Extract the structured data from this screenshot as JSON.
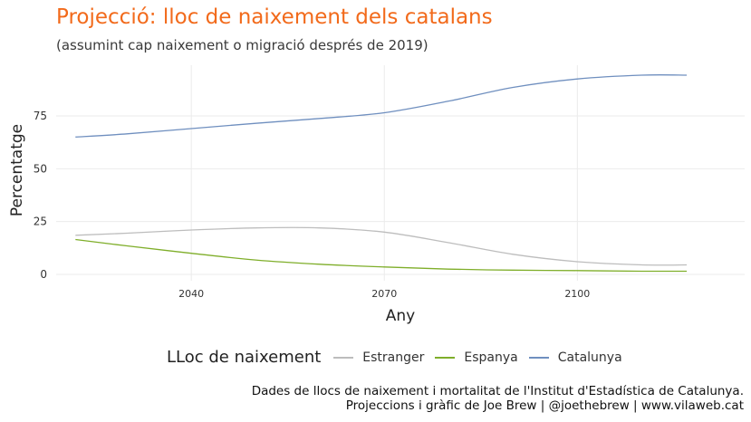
{
  "chart_data": {
    "type": "line",
    "title": "Projecció: lloc de naixement dels catalans",
    "subtitle": "(assumint cap naixement o migració després de 2019)",
    "xlabel": "Any",
    "ylabel": "Percentatge",
    "xlim": [
      2019,
      2126
    ],
    "ylim": [
      -3,
      99
    ],
    "x_ticks": [
      2040,
      2070,
      2100
    ],
    "y_ticks": [
      0,
      25,
      50,
      75
    ],
    "grid": true,
    "legend_title": "LLoc de naixement",
    "legend_position": "bottom",
    "x": [
      2022,
      2030,
      2040,
      2050,
      2060,
      2070,
      2080,
      2090,
      2100,
      2110,
      2117
    ],
    "series": [
      {
        "name": "Estranger",
        "color": "#bdbdbd",
        "values": [
          18.5,
          19.5,
          21.0,
          22.0,
          22.0,
          20.0,
          15.0,
          9.5,
          6.0,
          4.5,
          4.5
        ]
      },
      {
        "name": "Espanya",
        "color": "#7fae2a",
        "values": [
          16.5,
          13.5,
          10.0,
          6.8,
          4.8,
          3.5,
          2.5,
          2.0,
          1.8,
          1.5,
          1.5
        ]
      },
      {
        "name": "Catalunya",
        "color": "#6f8fbf",
        "values": [
          65.0,
          66.5,
          69.0,
          71.5,
          73.8,
          76.5,
          82.0,
          88.5,
          92.5,
          94.3,
          94.3
        ]
      }
    ]
  },
  "caption": {
    "line1": "Dades de llocs de naixement i mortalitat de l'Institut d'Estadística de Catalunya.",
    "line2": "Projeccions i gràfic de Joe Brew | @joethebrew | www.vilaweb.cat"
  }
}
